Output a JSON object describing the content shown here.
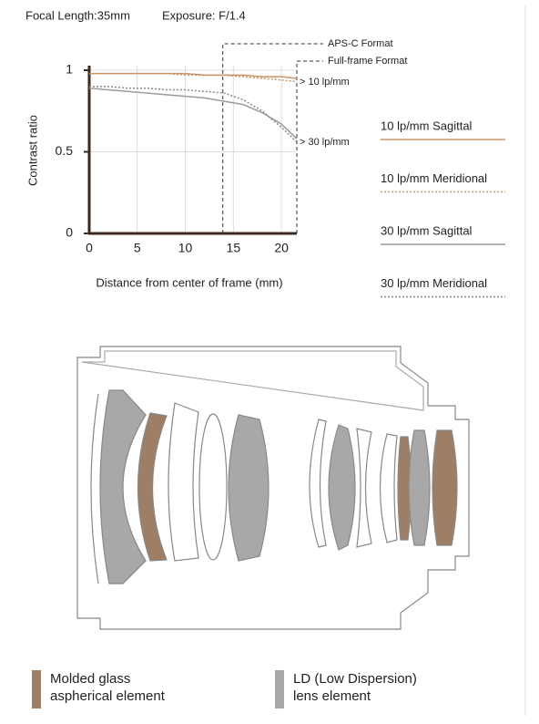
{
  "header": {
    "focal_length": "Focal Length:35mm",
    "exposure": "Exposure: F/1.4"
  },
  "chart_data": {
    "type": "line",
    "xlabel": "Distance from center of frame (mm)",
    "ylabel": "Contrast ratio",
    "x": [
      0,
      2,
      4,
      6,
      8,
      10,
      12,
      14,
      16,
      18,
      20,
      21.6
    ],
    "series": [
      {
        "name": "10 lp/mm Sagittal",
        "color": "#c8956a",
        "line_style": "solid",
        "values": [
          0.98,
          0.98,
          0.98,
          0.98,
          0.98,
          0.98,
          0.97,
          0.97,
          0.97,
          0.96,
          0.96,
          0.95
        ]
      },
      {
        "name": "10 lp/mm Meridional",
        "color": "#c8956a",
        "line_style": "dotted",
        "values": [
          0.98,
          0.98,
          0.98,
          0.98,
          0.98,
          0.97,
          0.97,
          0.97,
          0.96,
          0.95,
          0.94,
          0.93
        ]
      },
      {
        "name": "30 lp/mm Sagittal",
        "color": "#9a9a9a",
        "line_style": "solid",
        "values": [
          0.89,
          0.88,
          0.87,
          0.86,
          0.85,
          0.84,
          0.83,
          0.81,
          0.79,
          0.74,
          0.67,
          0.58
        ]
      },
      {
        "name": "30 lp/mm Meridional",
        "color": "#888888",
        "line_style": "dotted",
        "values": [
          0.9,
          0.9,
          0.89,
          0.89,
          0.88,
          0.88,
          0.87,
          0.86,
          0.82,
          0.75,
          0.65,
          0.56
        ]
      }
    ],
    "markers": [
      {
        "x": 13.9,
        "label": "APS-C Format"
      },
      {
        "x": 21.6,
        "label": "Full-frame Format"
      }
    ],
    "annotations": [
      "> 10 lp/mm",
      "> 30 lp/mm"
    ],
    "xlim": [
      0,
      21.6
    ],
    "xticks": [
      0,
      5,
      10,
      15,
      20
    ],
    "ylim": [
      0,
      1
    ],
    "yticks": [
      0,
      0.5,
      1
    ],
    "grid": true
  },
  "lens_diagram": {
    "legend": [
      {
        "color": "#9e7f66",
        "lines": [
          "Molded glass",
          "aspherical element"
        ]
      },
      {
        "color": "#a8a8a8",
        "lines": [
          "LD (Low Dispersion)",
          "lens element"
        ]
      }
    ]
  }
}
